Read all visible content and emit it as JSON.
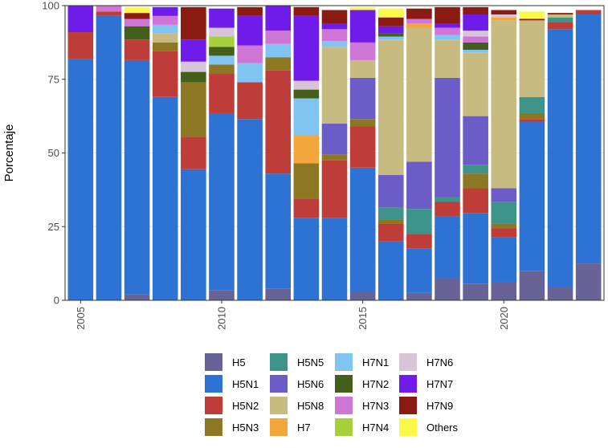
{
  "chart_data": {
    "type": "bar",
    "stacked": true,
    "title": "",
    "xlabel": "",
    "ylabel": "Porcentaje",
    "ylim": [
      0,
      100
    ],
    "yticks": [
      0,
      25,
      50,
      75,
      100
    ],
    "xticks": [
      2005,
      2010,
      2015,
      2020
    ],
    "grid": true,
    "legend_position": "bottom",
    "categories": [
      2005,
      2006,
      2007,
      2008,
      2009,
      2010,
      2011,
      2012,
      2013,
      2014,
      2015,
      2016,
      2017,
      2018,
      2019,
      2020,
      2021,
      2022,
      2023
    ],
    "series": [
      {
        "name": "H5",
        "color": "#676396",
        "values": [
          0,
          0,
          2,
          0,
          0,
          3.5,
          0,
          4,
          0,
          0,
          3,
          0,
          2.5,
          7.5,
          5.5,
          6,
          10,
          4.5,
          12.5
        ]
      },
      {
        "name": "H5N1",
        "color": "#2E73D3",
        "values": [
          82,
          96.5,
          79.5,
          69,
          44.5,
          60,
          61.5,
          39,
          28,
          28,
          42,
          20,
          15,
          21,
          24,
          15.5,
          50.5,
          87.5,
          84.5
        ]
      },
      {
        "name": "H5N2",
        "color": "#BF3D38",
        "values": [
          9,
          1.5,
          7,
          15.5,
          11,
          13.5,
          12.5,
          35,
          6.5,
          19.5,
          14,
          6,
          5,
          5,
          8.5,
          3,
          1,
          2.5,
          1.5
        ]
      },
      {
        "name": "H5N3",
        "color": "#8C7823",
        "values": [
          0,
          0,
          0,
          3,
          18.5,
          3,
          0,
          4.5,
          12,
          2,
          2.5,
          1.5,
          0,
          0,
          5,
          1.5,
          2,
          0,
          0
        ]
      },
      {
        "name": "H5N5",
        "color": "#3E9488",
        "values": [
          0,
          0,
          0,
          0,
          0,
          0,
          0,
          0,
          0,
          0,
          0,
          4,
          8.5,
          1.5,
          3,
          7.5,
          5.5,
          1.5,
          0
        ]
      },
      {
        "name": "H5N6",
        "color": "#6B5CC7",
        "values": [
          0,
          0,
          0,
          0,
          0,
          0,
          0,
          0,
          0,
          10.5,
          14,
          11,
          16,
          40.5,
          16.5,
          4.5,
          0,
          0,
          0
        ]
      },
      {
        "name": "H5N8",
        "color": "#C8BB82",
        "values": [
          0,
          0,
          0,
          3,
          0,
          0,
          0,
          0,
          0,
          26,
          6,
          46,
          45.5,
          13,
          21.5,
          57,
          26,
          1,
          0
        ]
      },
      {
        "name": "H7",
        "color": "#F2A63C",
        "values": [
          0,
          0,
          0,
          0,
          0,
          0,
          0,
          0,
          9.5,
          0,
          0,
          0,
          1.5,
          0,
          0,
          1,
          0,
          0,
          0
        ]
      },
      {
        "name": "H7N1",
        "color": "#80C4F4",
        "values": [
          0,
          0,
          0,
          3,
          0,
          3,
          6.5,
          4.5,
          12.5,
          2,
          0,
          1,
          0,
          1.5,
          1,
          0,
          0,
          0,
          0
        ]
      },
      {
        "name": "H7N2",
        "color": "#445F1C",
        "values": [
          0,
          0,
          4.5,
          0,
          3.5,
          3,
          0,
          0,
          3,
          0,
          0,
          1,
          0,
          0,
          2.5,
          0,
          0,
          0,
          0
        ]
      },
      {
        "name": "H7N3",
        "color": "#CF75D6",
        "values": [
          0,
          2,
          2.5,
          3,
          0,
          0,
          6,
          4.5,
          0,
          4,
          6,
          0,
          1.5,
          2.5,
          2,
          0,
          0,
          0,
          0
        ]
      },
      {
        "name": "H7N4",
        "color": "#A8CF3C",
        "values": [
          0,
          0,
          0,
          0,
          0,
          3.5,
          0,
          0,
          0,
          0,
          0,
          0,
          0,
          0,
          0,
          0,
          0,
          0,
          0
        ]
      },
      {
        "name": "H7N6",
        "color": "#D7C4D8",
        "values": [
          0,
          0,
          0,
          0,
          3.5,
          3,
          0,
          0,
          3,
          0,
          0,
          0,
          0,
          0,
          2,
          1,
          0,
          0,
          0
        ]
      },
      {
        "name": "H7N7",
        "color": "#6F1BEA",
        "values": [
          9,
          0,
          0,
          3,
          7.5,
          6.5,
          10,
          8.5,
          22,
          2,
          11,
          2.5,
          0,
          1.5,
          5.5,
          0,
          0,
          0,
          0
        ]
      },
      {
        "name": "H7N9",
        "color": "#8B1A12",
        "values": [
          0,
          0,
          2,
          0,
          11,
          0,
          3,
          0,
          3,
          4.5,
          0,
          3,
          3.5,
          5.5,
          2.5,
          1.5,
          0.5,
          0.5,
          0
        ]
      },
      {
        "name": "Others",
        "color": "#FBF84A",
        "values": [
          0,
          0,
          2,
          0,
          0,
          0,
          0,
          0,
          0,
          0,
          1,
          3,
          0,
          0,
          0,
          0,
          2.5,
          0,
          0
        ]
      }
    ]
  }
}
